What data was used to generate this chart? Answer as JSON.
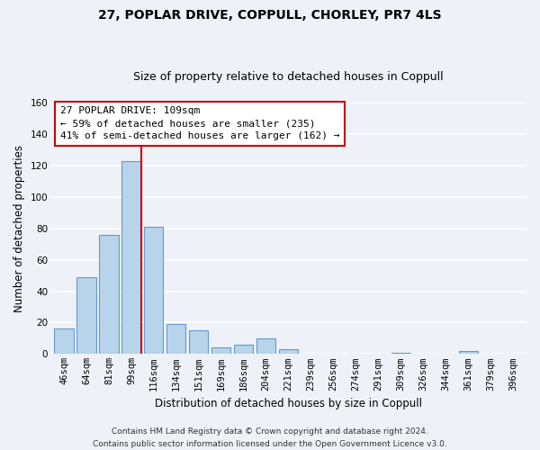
{
  "title": "27, POPLAR DRIVE, COPPULL, CHORLEY, PR7 4LS",
  "subtitle": "Size of property relative to detached houses in Coppull",
  "xlabel": "Distribution of detached houses by size in Coppull",
  "ylabel": "Number of detached properties",
  "bar_labels": [
    "46sqm",
    "64sqm",
    "81sqm",
    "99sqm",
    "116sqm",
    "134sqm",
    "151sqm",
    "169sqm",
    "186sqm",
    "204sqm",
    "221sqm",
    "239sqm",
    "256sqm",
    "274sqm",
    "291sqm",
    "309sqm",
    "326sqm",
    "344sqm",
    "361sqm",
    "379sqm",
    "396sqm"
  ],
  "bar_values": [
    16,
    49,
    76,
    123,
    81,
    19,
    15,
    4,
    6,
    10,
    3,
    0,
    0,
    0,
    0,
    1,
    0,
    0,
    2,
    0,
    0
  ],
  "bar_color": "#b8d4ea",
  "bar_edge_color": "#6699cc",
  "ylim": [
    0,
    160
  ],
  "yticks": [
    0,
    20,
    40,
    60,
    80,
    100,
    120,
    140,
    160
  ],
  "property_line_color": "#cc0000",
  "annotation_line1": "27 POPLAR DRIVE: 109sqm",
  "annotation_line2": "← 59% of detached houses are smaller (235)",
  "annotation_line3": "41% of semi-detached houses are larger (162) →",
  "footer_text": "Contains HM Land Registry data © Crown copyright and database right 2024.\nContains public sector information licensed under the Open Government Licence v3.0.",
  "background_color": "#eef2f8",
  "grid_color": "#ffffff",
  "title_fontsize": 10,
  "subtitle_fontsize": 9,
  "axis_label_fontsize": 8.5,
  "tick_fontsize": 7.5,
  "annotation_fontsize": 8,
  "footer_fontsize": 6.5
}
